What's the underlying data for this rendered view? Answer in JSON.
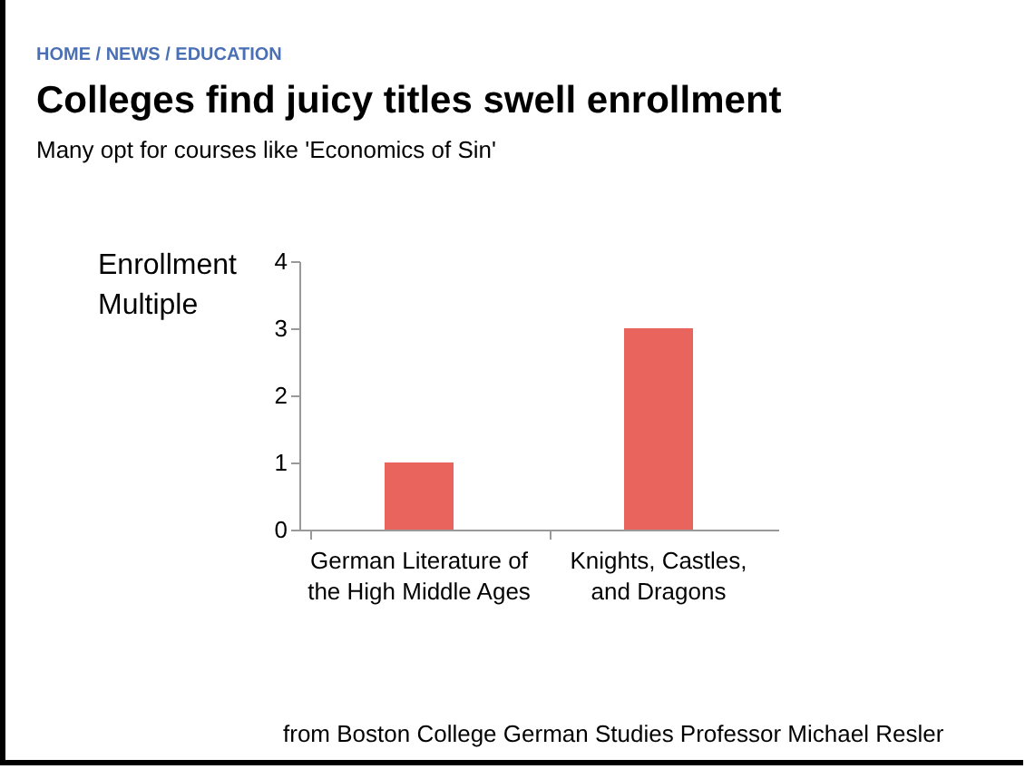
{
  "chart_data": {
    "type": "bar",
    "title": "Colleges find juicy titles swell enrollment",
    "subtitle": "Many opt for courses like 'Economics of Sin'",
    "ylabel": "Enrollment Multiple",
    "annotations": [
      "HOME / NEWS / EDUCATION",
      "from Boston College German Studies Professor Michael Resler"
    ],
    "categories": [
      "German Literature of the High Middle Ages",
      "Knights, Castles, and Dragons"
    ],
    "values": [
      1,
      3
    ],
    "color": "#e8645c",
    "ylim": [
      0,
      4
    ],
    "yticks": [
      0,
      1,
      2,
      3,
      4
    ],
    "grid": false
  }
}
